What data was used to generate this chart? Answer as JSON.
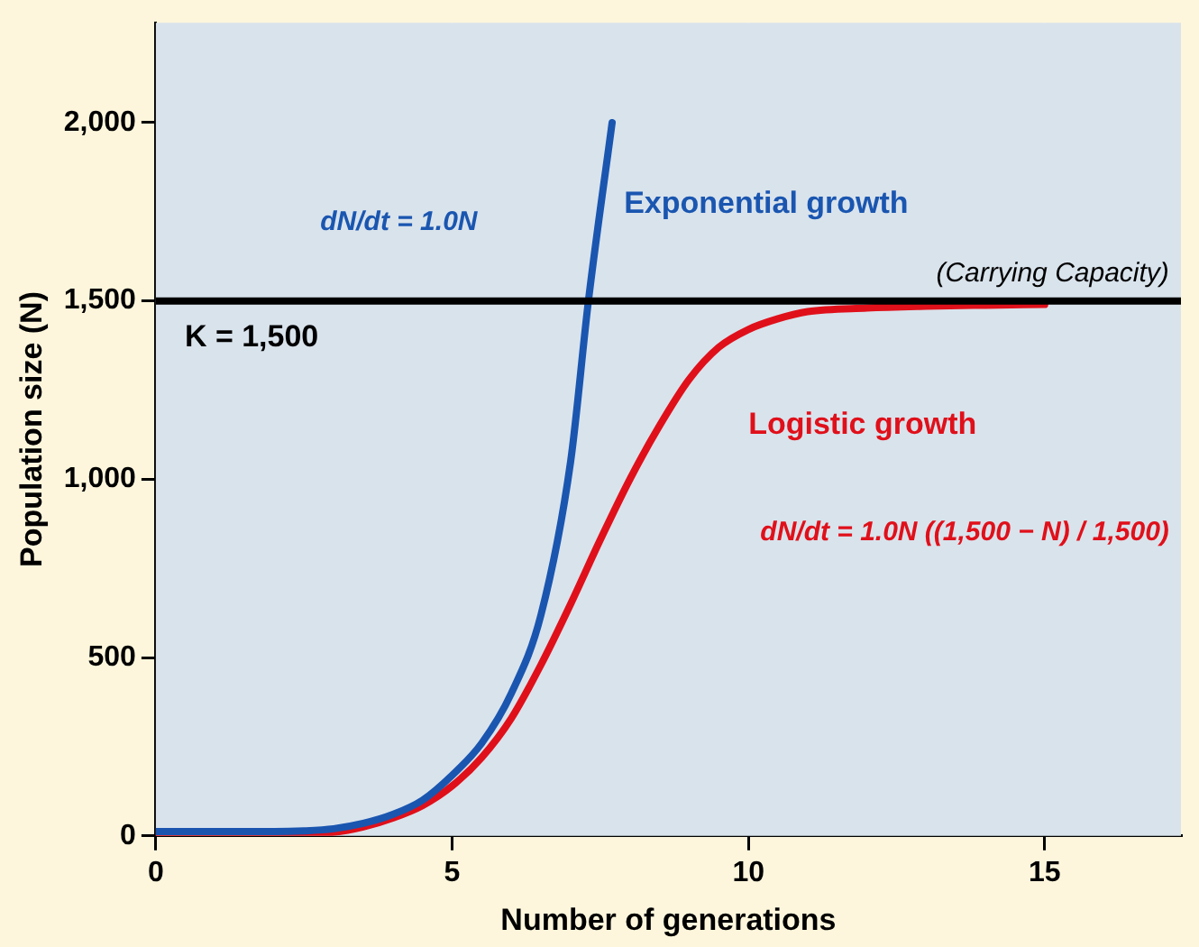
{
  "chart_data": {
    "type": "line",
    "xlabel": "Number of generations",
    "ylabel": "Population size (N)",
    "xlim": [
      0,
      17.3
    ],
    "xticks": [
      0,
      5,
      10,
      15
    ],
    "ylim": [
      0,
      2280
    ],
    "yticks": [
      0,
      {
        "value": 500,
        "label": "500"
      },
      {
        "value": 1000,
        "label": "1,000"
      },
      {
        "value": 1500,
        "label": "1,500"
      },
      {
        "value": 2000,
        "label": "2,000"
      }
    ],
    "grid": true,
    "legend": false,
    "marker": "none",
    "line_style": "solid",
    "series": [
      {
        "name": "Exponential growth",
        "color": "#1a56b0",
        "x": [
          0,
          1,
          2,
          2.5,
          3,
          3.5,
          4,
          4.5,
          5,
          5.5,
          6,
          6.5,
          7,
          7.3,
          7.7
        ],
        "values": [
          12,
          12,
          12,
          14,
          20,
          35,
          60,
          100,
          170,
          260,
          400,
          620,
          1050,
          1500,
          2000
        ]
      },
      {
        "name": "Logistic growth",
        "color": "#e0101a",
        "x": [
          0,
          1,
          2,
          3,
          3.5,
          4,
          4.5,
          5,
          5.5,
          6,
          6.5,
          7,
          7.5,
          8,
          8.5,
          9,
          9.5,
          10,
          10.5,
          11,
          12,
          13,
          14,
          15
        ],
        "values": [
          4,
          4,
          4,
          10,
          25,
          50,
          85,
          140,
          220,
          330,
          480,
          650,
          830,
          1000,
          1150,
          1280,
          1370,
          1420,
          1450,
          1470,
          1480,
          1485,
          1488,
          1490
        ]
      }
    ],
    "ref_lines": [
      {
        "axis": "y",
        "value": 1500,
        "label": "K = 1,500",
        "color": "#000000"
      }
    ],
    "annotations": [
      "dN/dt = 1.0N",
      "(Carrying Capacity)",
      "dN/dt = 1.0N ((1,500 − N) / 1,500)"
    ]
  }
}
